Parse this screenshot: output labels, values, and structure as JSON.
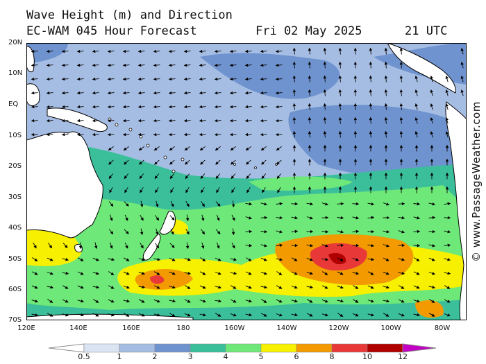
{
  "header": {
    "title_line1": "Wave Height (m) and Direction",
    "title_line2": "EC-WAM 045 Hour Forecast",
    "date": "Fri 02 May 2025",
    "time": "21 UTC"
  },
  "brand": "© www.PassageWeather.com",
  "axes": {
    "lat_labels": [
      "20N",
      "10N",
      "EQ",
      "10S",
      "20S",
      "30S",
      "40S",
      "50S",
      "60S",
      "70S"
    ],
    "lon_labels": [
      "120E",
      "140E",
      "160E",
      "180",
      "160W",
      "140W",
      "120W",
      "100W",
      "80W"
    ]
  },
  "legend": {
    "unit": "m",
    "labels": [
      "0.5",
      "1",
      "2",
      "3",
      "4",
      "5",
      "6",
      "8",
      "10",
      "12"
    ],
    "colors": [
      "#ffffff",
      "#dbe4f3",
      "#a6bde3",
      "#6f93cf",
      "#3bbf9a",
      "#6ee878",
      "#f7f000",
      "#f29a00",
      "#e83838",
      "#b00000",
      "#c400c4"
    ]
  },
  "map_colors": {
    "land": "#ffffff",
    "coastline": "#000000",
    "sea_calm": "#a6bde3",
    "sea_moderate": "#6f93cf"
  },
  "arrow_color": "#000000"
}
